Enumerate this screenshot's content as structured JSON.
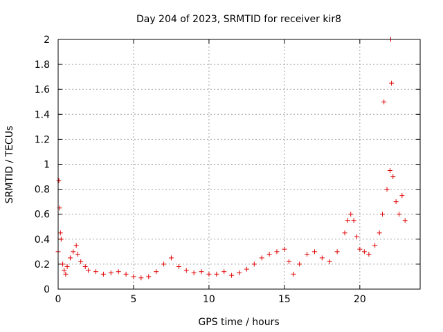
{
  "chart_data": {
    "type": "scatter",
    "title": "Day 204 of 2023, SRMTID for receiver kir8",
    "xlabel": "GPS time / hours",
    "ylabel": "SRMTID / TECUs",
    "xlim": [
      0,
      24
    ],
    "ylim": [
      0,
      2
    ],
    "xticks": [
      0,
      5,
      10,
      15,
      20
    ],
    "xtick_labels": [
      "0",
      "5",
      "10",
      "15",
      "20"
    ],
    "yticks": [
      0,
      0.2,
      0.4,
      0.6,
      0.8,
      1,
      1.2,
      1.4,
      1.6,
      1.8,
      2
    ],
    "ytick_labels": [
      "0",
      "0.2",
      "0.4",
      "0.6",
      "0.8",
      "1",
      "1.2",
      "1.4",
      "1.6",
      "1.8",
      "2"
    ],
    "grid": true,
    "marker": "+",
    "color": "#e00000",
    "series": [
      {
        "name": "SRMTID",
        "x": [
          0.0,
          0.05,
          0.1,
          0.15,
          0.2,
          0.3,
          0.4,
          0.5,
          0.6,
          0.8,
          1.0,
          1.2,
          1.3,
          1.5,
          1.8,
          2.0,
          2.5,
          3.0,
          3.5,
          4.0,
          4.5,
          5.0,
          5.5,
          6.0,
          6.5,
          7.0,
          7.5,
          8.0,
          8.5,
          9.0,
          9.5,
          10.0,
          10.5,
          11.0,
          11.5,
          12.0,
          12.5,
          13.0,
          13.5,
          14.0,
          14.5,
          15.0,
          15.3,
          15.6,
          16.0,
          16.5,
          17.0,
          17.5,
          18.0,
          18.5,
          19.0,
          19.2,
          19.4,
          19.6,
          19.8,
          20.0,
          20.3,
          20.6,
          21.0,
          21.3,
          21.5,
          21.6,
          21.8,
          22.0,
          22.05,
          22.1,
          22.2,
          22.4,
          22.6,
          22.8,
          23.0
        ],
        "y": [
          0.3,
          0.87,
          0.65,
          0.45,
          0.4,
          0.2,
          0.15,
          0.12,
          0.18,
          0.25,
          0.3,
          0.35,
          0.28,
          0.22,
          0.18,
          0.15,
          0.14,
          0.12,
          0.13,
          0.14,
          0.12,
          0.1,
          0.09,
          0.1,
          0.14,
          0.2,
          0.25,
          0.18,
          0.15,
          0.13,
          0.14,
          0.12,
          0.12,
          0.14,
          0.11,
          0.13,
          0.16,
          0.2,
          0.25,
          0.28,
          0.3,
          0.32,
          0.22,
          0.12,
          0.2,
          0.28,
          0.3,
          0.25,
          0.22,
          0.3,
          0.45,
          0.55,
          0.6,
          0.55,
          0.42,
          0.32,
          0.3,
          0.28,
          0.35,
          0.45,
          0.6,
          1.5,
          0.8,
          0.95,
          2.0,
          1.65,
          0.9,
          0.7,
          0.6,
          0.75,
          0.55
        ]
      }
    ]
  }
}
